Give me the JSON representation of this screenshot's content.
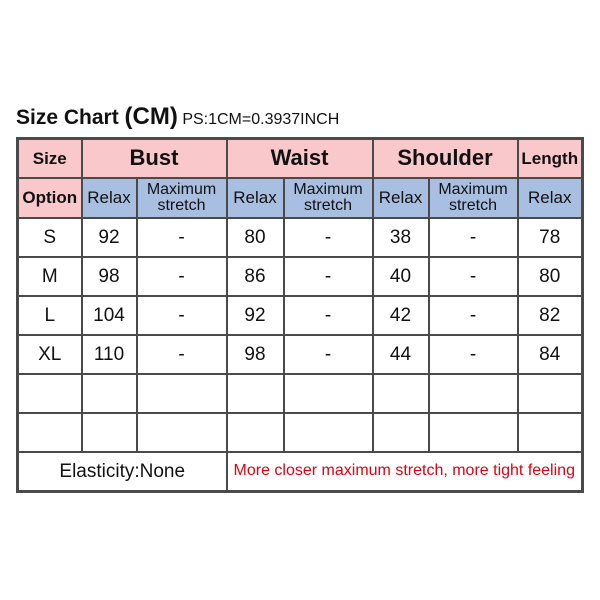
{
  "title": {
    "main": "Size Chart",
    "unit": "(CM)",
    "note": "PS:1CM=0.3937INCH"
  },
  "header": {
    "size": "Size",
    "option": "Option",
    "bust": "Bust",
    "waist": "Waist",
    "shoulder": "Shoulder",
    "length": "Length",
    "relax": "Relax",
    "max1": "Maximum",
    "max2": "stretch"
  },
  "colors": {
    "header_pink": "#f8c8cb",
    "subheader_blue": "#a8bfe2",
    "note_red": "#e0000e"
  },
  "rows": [
    {
      "size": "S",
      "bust_relax": "92",
      "bust_max": "-",
      "waist_relax": "80",
      "waist_max": "-",
      "shoulder_relax": "38",
      "shoulder_max": "-",
      "length": "78"
    },
    {
      "size": "M",
      "bust_relax": "98",
      "bust_max": "-",
      "waist_relax": "86",
      "waist_max": "-",
      "shoulder_relax": "40",
      "shoulder_max": "-",
      "length": "80"
    },
    {
      "size": "L",
      "bust_relax": "104",
      "bust_max": "-",
      "waist_relax": "92",
      "waist_max": "-",
      "shoulder_relax": "42",
      "shoulder_max": "-",
      "length": "82"
    },
    {
      "size": "XL",
      "bust_relax": "110",
      "bust_max": "-",
      "waist_relax": "98",
      "waist_max": "-",
      "shoulder_relax": "44",
      "shoulder_max": "-",
      "length": "84"
    }
  ],
  "footer": {
    "elasticity": "Elasticity:None",
    "note": "More closer maximum stretch, more tight feeling"
  }
}
